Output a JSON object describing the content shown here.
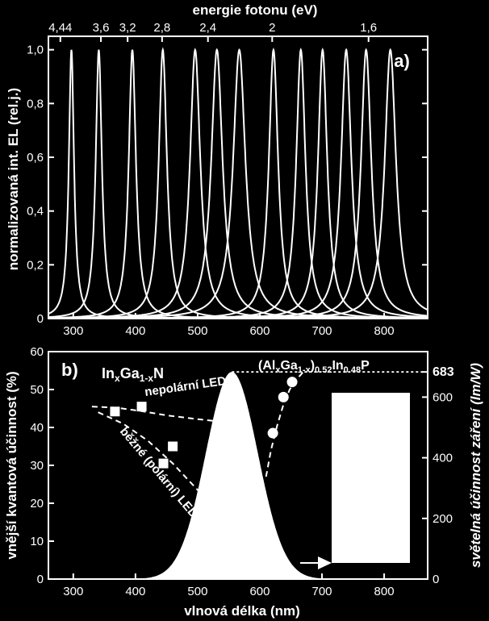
{
  "chart_data": [
    {
      "panel": "a)",
      "type": "line",
      "top_axis_label": "energie fotonu (eV)",
      "top_ticks": [
        "4,44",
        "3,6",
        "3,2",
        "2,8",
        "2,4",
        "2",
        "1,6"
      ],
      "top_tick_wavelengths": [
        279.2,
        344.4,
        387.4,
        442.8,
        516.6,
        619.9,
        774.9
      ],
      "xlim": [
        260,
        870
      ],
      "xticks": [
        300,
        400,
        500,
        600,
        700,
        800
      ],
      "ylabel": "normalizovaná int. EL (rel.j.)",
      "ylim": [
        0,
        1.05
      ],
      "yticks": [
        "0",
        "0,2",
        "0,4",
        "0,6",
        "0,8",
        "1,0"
      ],
      "ytick_values": [
        0,
        0.2,
        0.4,
        0.6,
        0.8,
        1.0
      ],
      "series": [
        {
          "peak": 297,
          "width": 5
        },
        {
          "peak": 341,
          "width": 6
        },
        {
          "peak": 395,
          "width": 7
        },
        {
          "peak": 444,
          "width": 8
        },
        {
          "peak": 496,
          "width": 10
        },
        {
          "peak": 531,
          "width": 11
        },
        {
          "peak": 567,
          "width": 12
        },
        {
          "peak": 622,
          "width": 9
        },
        {
          "peak": 666,
          "width": 9
        },
        {
          "peak": 701,
          "width": 9
        },
        {
          "peak": 739,
          "width": 10
        },
        {
          "peak": 771,
          "width": 10
        },
        {
          "peak": 810,
          "width": 11
        }
      ]
    },
    {
      "panel": "b)",
      "type": "scatter",
      "xlabel": "vlnová délka (nm)",
      "xlim": [
        260,
        870
      ],
      "xticks": [
        300,
        400,
        500,
        600,
        700,
        800
      ],
      "ylabel": "vnější kvantová účinnost (%)",
      "ylim": [
        0,
        60
      ],
      "yticks": [
        0,
        10,
        20,
        30,
        40,
        50,
        60
      ],
      "y2label": "světelná účinnost záření (lm/W)",
      "y2lim": [
        0,
        750
      ],
      "y2ticks": [
        "0",
        "200",
        "400",
        "600",
        "683"
      ],
      "y2tick_values": [
        0,
        200,
        400,
        600,
        683
      ],
      "square_points": {
        "x": [
          367,
          410,
          445,
          460
        ],
        "y": [
          44.2,
          45.5,
          30.5,
          35
        ]
      },
      "circle_points": {
        "x": [
          621,
          638,
          652
        ],
        "y": [
          38.5,
          48,
          52
        ]
      },
      "nonpolar_trend": {
        "x": [
          330,
          370,
          410,
          450,
          500,
          545
        ],
        "y": [
          45.5,
          45.2,
          44.3,
          43.2,
          42.2,
          41.4
        ]
      },
      "polar_trend": {
        "x": [
          340,
          380,
          420,
          460,
          500,
          530
        ],
        "y": [
          44,
          41,
          36.5,
          30.5,
          23.5,
          17
        ]
      },
      "algainp_trend": {
        "x": [
          610,
          618,
          628,
          638,
          648,
          658,
          672
        ],
        "y": [
          27,
          34,
          40.5,
          46,
          50,
          52.5,
          55
        ]
      },
      "luminosity_peak_nm": 555,
      "luminosity_sigma_nm": 42,
      "luminosity_peak_value": 683,
      "annotations": {
        "ingan_base": "In",
        "ingan_sub1": "x",
        "ingan_mid": "Ga",
        "ingan_sub2": "1-x",
        "ingan_end": "N",
        "algainp_a": "(Al",
        "algainp_b": "x",
        "algainp_c": "Ga",
        "algainp_d": "1-x",
        "algainp_e": ")",
        "algainp_f": "0.52",
        "algainp_g": "In",
        "algainp_h": "0.48",
        "algainp_i": "P",
        "nonpolar": "nepolární LED",
        "polar": "běžné (polární) LED"
      }
    }
  ]
}
